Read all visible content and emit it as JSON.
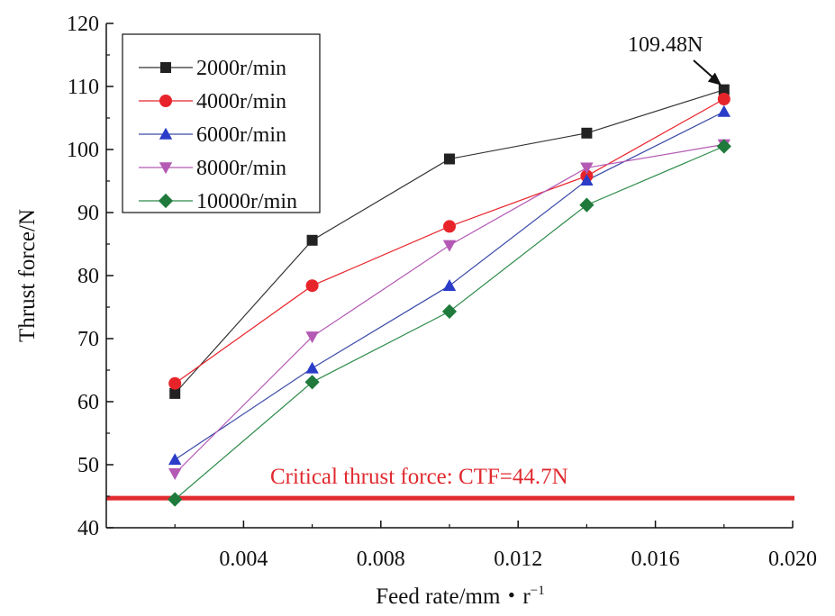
{
  "chart_data": {
    "type": "line",
    "title": "",
    "xlabel": "Feed rate/mm・r",
    "xlabel_superscript": "−1",
    "ylabel": "Thrust force/N",
    "xlim": [
      0,
      0.02
    ],
    "ylim": [
      40,
      120
    ],
    "x": [
      0.002,
      0.006,
      0.01,
      0.014,
      0.018
    ],
    "xticks": [
      0.004,
      0.008,
      0.012,
      0.016,
      0.02
    ],
    "xtick_labels": [
      "0.004",
      "0.008",
      "0.012",
      "0.016",
      "0.020"
    ],
    "yticks": [
      40,
      50,
      60,
      70,
      80,
      90,
      100,
      110,
      120
    ],
    "ytick_labels": [
      "40",
      "50",
      "60",
      "70",
      "80",
      "90",
      "100",
      "110",
      "120"
    ],
    "grid": false,
    "legend_position": "top-left",
    "series": [
      {
        "name": "2000r/min",
        "color": "#222222",
        "line_color": "#333333",
        "marker": "square",
        "values": [
          61.3,
          85.6,
          98.5,
          102.6,
          109.48
        ]
      },
      {
        "name": "4000r/min",
        "color": "#e8242b",
        "line_color": "#e8242b",
        "marker": "circle",
        "values": [
          62.9,
          78.4,
          87.8,
          95.8,
          108.0
        ]
      },
      {
        "name": "6000r/min",
        "color": "#2b3cc8",
        "line_color": "#3a4aa8",
        "marker": "triangle-up",
        "values": [
          50.8,
          65.3,
          78.4,
          95.1,
          106.0
        ]
      },
      {
        "name": "8000r/min",
        "color": "#b45ab4",
        "line_color": "#b45ab4",
        "marker": "triangle-down",
        "values": [
          48.6,
          70.3,
          84.8,
          97.1,
          100.8
        ]
      },
      {
        "name": "10000r/min",
        "color": "#1f7a3c",
        "line_color": "#2e8b4a",
        "marker": "diamond",
        "values": [
          44.5,
          63.1,
          74.3,
          91.2,
          100.5
        ]
      }
    ],
    "reference_line": {
      "y": 44.7,
      "label": "Critical thrust force: CTF=44.7N",
      "color": "#e02a2f"
    },
    "annotations": [
      {
        "text": "109.48N",
        "x": 0.018,
        "y": 109.48
      }
    ]
  }
}
